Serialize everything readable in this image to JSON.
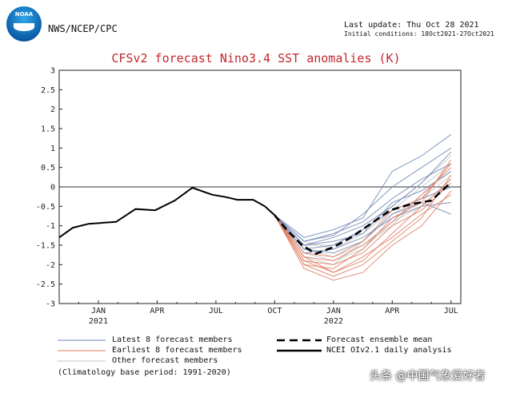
{
  "header": {
    "logo_text": "NOAA",
    "agency": "NWS/NCEP/CPC",
    "last_update": "Last update: Thu Oct 28 2021",
    "initial_conditions": "Initial conditions: 18Oct2021-27Oct2021"
  },
  "colors": {
    "latest": "#6f86b4",
    "earliest": "#e07a5e",
    "other": "#c4c4c4",
    "mean": "#000000",
    "observed": "#000000",
    "title": "#c0282d"
  },
  "legend": {
    "latest": "Latest 8 forecast members",
    "earliest": "Earliest 8 forecast members",
    "other": "Other forecast members",
    "mean": "Forecast ensemble mean",
    "observed": "NCEI OIv2.1 daily analysis",
    "climatology": "(Climatology base period: 1991-2020)"
  },
  "watermark": "头条 @中国气象爱好者",
  "chart_data": {
    "type": "line",
    "title": "CFSv2 forecast Nino3.4 SST anomalies (K)",
    "xlabel": "",
    "ylabel": "",
    "x_ticks": [
      "JAN",
      "APR",
      "JUL",
      "OCT",
      "JAN",
      "APR",
      "JUL"
    ],
    "x_tick_months": [
      0,
      3,
      6,
      9,
      12,
      15,
      18
    ],
    "year_labels": [
      {
        "label": "2021",
        "month": 0
      },
      {
        "label": "2022",
        "month": 12
      }
    ],
    "xlim": [
      -2,
      18.5
    ],
    "ylim": [
      -3,
      3
    ],
    "y_ticks": [
      3,
      2.5,
      2,
      1.5,
      1,
      0.5,
      0,
      -0.5,
      -1,
      -1.5,
      -2,
      -2.5,
      -3
    ],
    "zero_line": true,
    "grid": false,
    "series": [
      {
        "name": "NCEI OIv2.1 daily analysis",
        "role": "observed",
        "x": [
          -2,
          -1.3,
          -0.5,
          0.3,
          0.9,
          1.9,
          2.9,
          3.9,
          4.8,
          5.8,
          6.5,
          7.1,
          7.9,
          8.5,
          9.0
        ],
        "y": [
          -1.3,
          -1.05,
          -0.95,
          -0.92,
          -0.9,
          -0.57,
          -0.6,
          -0.35,
          -0.02,
          -0.2,
          -0.26,
          -0.33,
          -0.33,
          -0.5,
          -0.73
        ]
      },
      {
        "name": "Forecast ensemble mean",
        "role": "mean",
        "x": [
          9.0,
          9.6,
          10.4,
          11.1,
          12.0,
          12.9,
          13.9,
          14.9,
          15.9,
          17.0,
          18.0
        ],
        "y": [
          -0.73,
          -1.1,
          -1.5,
          -1.72,
          -1.55,
          -1.3,
          -0.95,
          -0.6,
          -0.45,
          -0.35,
          0.12
        ]
      },
      {
        "role": "latest",
        "x": [
          9.0,
          10.5,
          12.0,
          13.5,
          15.0,
          16.5,
          18.0
        ],
        "y": [
          -0.73,
          -1.4,
          -1.2,
          -0.9,
          -0.3,
          0.2,
          0.6
        ]
      },
      {
        "role": "latest",
        "x": [
          9.0,
          10.5,
          12.0,
          13.5,
          15.0,
          16.5,
          18.0
        ],
        "y": [
          -0.73,
          -1.5,
          -1.3,
          -1.0,
          -0.5,
          0.1,
          0.9
        ]
      },
      {
        "role": "latest",
        "x": [
          9.0,
          10.5,
          12.0,
          13.5,
          15.0,
          16.5,
          18.0
        ],
        "y": [
          -0.73,
          -1.6,
          -1.5,
          -1.1,
          -0.6,
          -0.3,
          0.0
        ]
      },
      {
        "role": "latest",
        "x": [
          9.0,
          10.5,
          12.0,
          13.5,
          15.0,
          16.5,
          18.0
        ],
        "y": [
          -0.73,
          -1.3,
          -1.1,
          -0.8,
          0.4,
          0.8,
          1.35
        ]
      },
      {
        "role": "latest",
        "x": [
          9.0,
          10.5,
          12.0,
          13.5,
          15.0,
          16.5,
          18.0
        ],
        "y": [
          -0.73,
          -1.7,
          -1.6,
          -1.3,
          -0.8,
          -0.5,
          -0.4
        ]
      },
      {
        "role": "latest",
        "x": [
          9.0,
          10.5,
          12.0,
          13.5,
          15.0,
          16.5,
          18.0
        ],
        "y": [
          -0.73,
          -1.5,
          -1.4,
          -1.2,
          -0.4,
          -0.1,
          0.4
        ]
      },
      {
        "role": "latest",
        "x": [
          9.0,
          10.5,
          12.0,
          13.5,
          15.0,
          16.5,
          18.0
        ],
        "y": [
          -0.73,
          -1.6,
          -1.7,
          -1.4,
          -0.7,
          -0.4,
          -0.7
        ]
      },
      {
        "role": "latest",
        "x": [
          9.0,
          10.5,
          12.0,
          13.5,
          15.0,
          16.5,
          18.0
        ],
        "y": [
          -0.73,
          -1.4,
          -1.25,
          -0.7,
          0.0,
          0.5,
          1.0
        ]
      },
      {
        "role": "earliest",
        "x": [
          9.0,
          10.5,
          12.0,
          13.5,
          15.0,
          16.5,
          18.0
        ],
        "y": [
          -0.73,
          -1.9,
          -2.2,
          -1.9,
          -1.2,
          -0.5,
          0.2
        ]
      },
      {
        "role": "earliest",
        "x": [
          9.0,
          10.5,
          12.0,
          13.5,
          15.0,
          16.5,
          18.0
        ],
        "y": [
          -0.73,
          -2.0,
          -2.3,
          -2.0,
          -1.4,
          -0.8,
          0.3
        ]
      },
      {
        "role": "earliest",
        "x": [
          9.0,
          10.5,
          12.0,
          13.5,
          15.0,
          16.5,
          18.0
        ],
        "y": [
          -0.73,
          -1.8,
          -1.9,
          -1.5,
          -0.9,
          -0.2,
          0.5
        ]
      },
      {
        "role": "earliest",
        "x": [
          9.0,
          10.5,
          12.0,
          13.5,
          15.0,
          16.5,
          18.0
        ],
        "y": [
          -0.73,
          -2.1,
          -2.4,
          -2.2,
          -1.5,
          -1.0,
          -0.1
        ]
      },
      {
        "role": "earliest",
        "x": [
          9.0,
          10.5,
          12.0,
          13.5,
          15.0,
          16.5,
          18.0
        ],
        "y": [
          -0.73,
          -1.7,
          -1.8,
          -1.4,
          -0.6,
          -0.3,
          0.6
        ]
      },
      {
        "role": "earliest",
        "x": [
          9.0,
          10.5,
          12.0,
          13.5,
          15.0,
          16.5,
          18.0
        ],
        "y": [
          -0.73,
          -1.9,
          -2.0,
          -1.7,
          -1.0,
          -0.6,
          0.1
        ]
      },
      {
        "role": "earliest",
        "x": [
          9.0,
          10.5,
          12.0,
          13.5,
          15.0,
          16.5,
          18.0
        ],
        "y": [
          -0.73,
          -2.0,
          -2.1,
          -1.6,
          -0.8,
          -0.4,
          0.7
        ]
      },
      {
        "role": "earliest",
        "x": [
          9.0,
          10.5,
          12.0,
          13.5,
          15.0,
          16.5,
          18.0
        ],
        "y": [
          -0.73,
          -1.8,
          -2.2,
          -1.8,
          -1.3,
          -0.7,
          -0.2
        ]
      },
      {
        "role": "other",
        "x": [
          9.0,
          10.5,
          12.0,
          13.5,
          15.0,
          16.5,
          18.0
        ],
        "y": [
          -0.73,
          -1.5,
          -1.5,
          -1.1,
          -0.5,
          0.1,
          0.8
        ]
      },
      {
        "role": "other",
        "x": [
          9.0,
          10.5,
          12.0,
          13.5,
          15.0,
          16.5,
          18.0
        ],
        "y": [
          -0.73,
          -1.6,
          -1.8,
          -1.5,
          -1.0,
          -0.2,
          0.4
        ]
      },
      {
        "role": "other",
        "x": [
          9.0,
          10.5,
          12.0,
          13.5,
          15.0,
          16.5,
          18.0
        ],
        "y": [
          -0.73,
          -1.7,
          -1.9,
          -1.6,
          -0.9,
          -0.5,
          0.2
        ]
      },
      {
        "role": "other",
        "x": [
          9.0,
          10.5,
          12.0,
          13.5,
          15.0,
          16.5,
          18.0
        ],
        "y": [
          -0.73,
          -1.4,
          -1.6,
          -1.2,
          -0.6,
          0.0,
          0.6
        ]
      },
      {
        "role": "other",
        "x": [
          9.0,
          10.5,
          12.0,
          13.5,
          15.0,
          16.5,
          18.0
        ],
        "y": [
          -0.73,
          -1.8,
          -2.0,
          -1.4,
          -0.7,
          -0.3,
          0.3
        ]
      }
    ]
  }
}
